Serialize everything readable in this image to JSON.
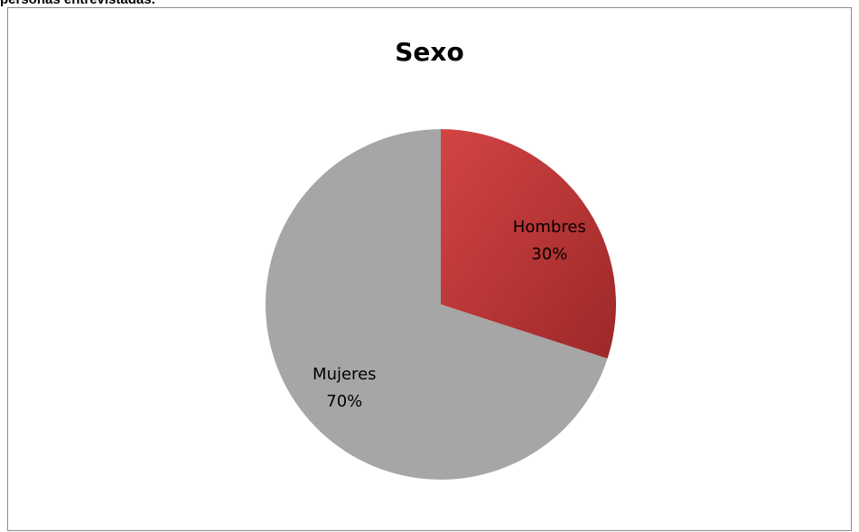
{
  "page": {
    "caption": "personas entrevistadas."
  },
  "chart_data": {
    "type": "pie",
    "title": "Sexo",
    "categories": [
      "Hombres",
      "Mujeres"
    ],
    "values": [
      30,
      70
    ],
    "labels": [
      "30%",
      "70%"
    ],
    "colors": [
      "#b83232",
      "#a6a6a6"
    ],
    "legend": "none"
  }
}
